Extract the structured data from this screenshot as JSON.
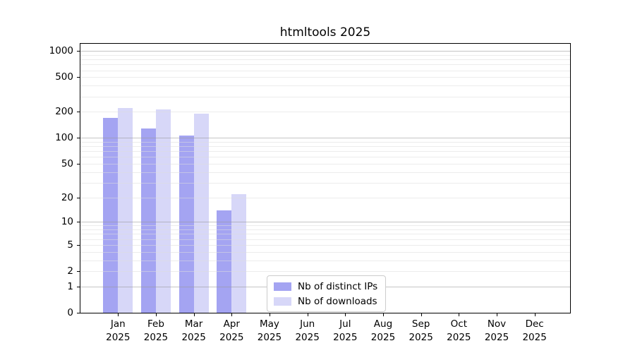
{
  "chart_data": {
    "type": "bar",
    "title": "htmltools 2025",
    "x_axis": {
      "categories": [
        "Jan",
        "Feb",
        "Mar",
        "Apr",
        "May",
        "Jun",
        "Jul",
        "Aug",
        "Sep",
        "Oct",
        "Nov",
        "Dec"
      ],
      "year_label": "2025"
    },
    "y_axis": {
      "ticks": [
        0,
        1,
        2,
        5,
        10,
        20,
        50,
        100,
        200,
        500,
        1000
      ],
      "scale": "log10(1+value)",
      "max_value": 1250
    },
    "series": [
      {
        "name": "Nb of distinct IPs",
        "color": "#a4a4f2",
        "values": [
          170,
          128,
          106,
          14,
          0,
          0,
          0,
          0,
          0,
          0,
          0,
          0
        ]
      },
      {
        "name": "Nb of downloads",
        "color": "#d7d7f8",
        "values": [
          220,
          215,
          190,
          22,
          0,
          0,
          0,
          0,
          0,
          0,
          0,
          0
        ]
      }
    ],
    "legend": {
      "position": "inside-bottom-center"
    },
    "grid": {
      "on": true,
      "major_line_color": "#c2c2c2",
      "minor_line_color": "#ececec"
    }
  }
}
